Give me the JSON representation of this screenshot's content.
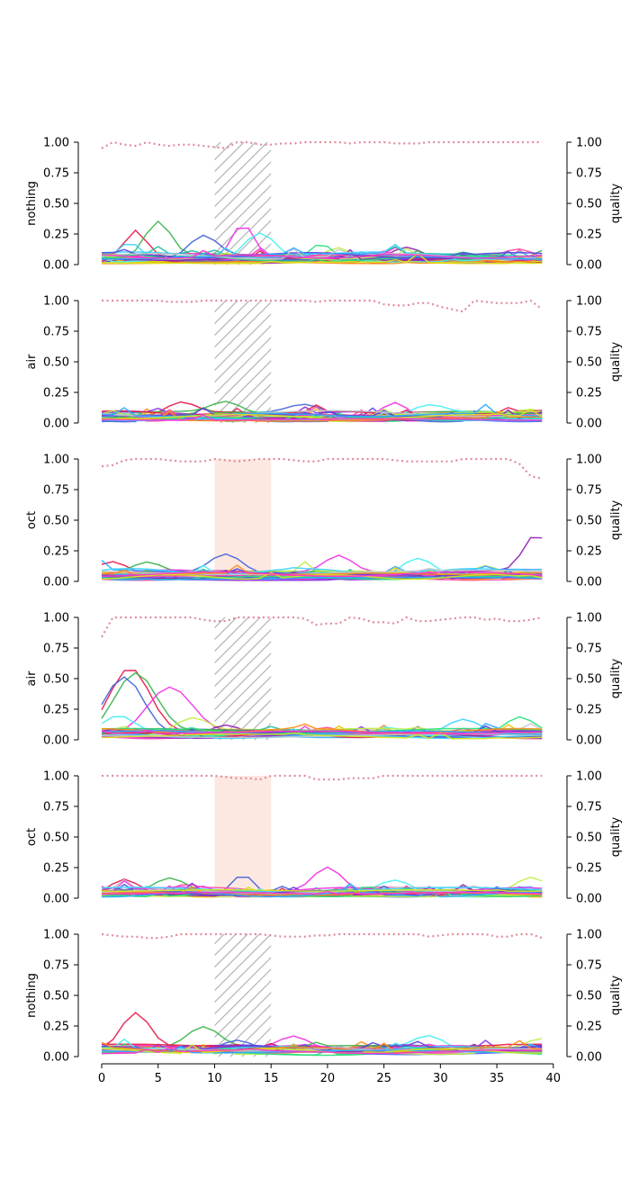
{
  "chart_data": {
    "type": "line",
    "x_range": [
      0,
      39
    ],
    "x_ticks": [
      0,
      5,
      10,
      15,
      20,
      25,
      30,
      35,
      40
    ],
    "y_ticks": [
      "0.00",
      "0.25",
      "0.50",
      "0.75",
      "1.00"
    ],
    "ylim": [
      0,
      1
    ],
    "right_axis_label": "quality",
    "highlight_range": [
      10,
      15
    ],
    "colors": {
      "quality_line": "#e08a9a",
      "hatch": "#b4b4b4",
      "highlight_fill": "#fde8e1",
      "series_palette": [
        "#e6194b",
        "#3cb44b",
        "#4363d8",
        "#f032e6",
        "#46f0f0",
        "#bfef45",
        "#911eb4",
        "#ff4fa0",
        "#3bd3ff",
        "#27e07a",
        "#5b3fe0",
        "#c8c8c8",
        "#ff8c1a",
        "#2fa8ff",
        "#d4e81b",
        "#ff33cc",
        "#5060ff",
        "#20c0a0",
        "#f2c200",
        "#8a2be2"
      ]
    },
    "panels": [
      {
        "ylabel": "nothing",
        "region_style": "hatch",
        "quality": [
          0.95,
          1.0,
          0.98,
          0.97,
          1.0,
          0.98,
          0.97,
          0.98,
          0.98,
          0.97,
          0.96,
          0.95,
          1.0,
          1.0,
          0.98,
          0.98,
          0.99,
          0.99,
          1.0,
          1.0,
          1.0,
          1.0,
          0.99,
          1.0,
          1.0,
          1.0,
          0.99,
          0.99,
          0.99,
          1.0,
          1.0,
          1.0,
          1.0,
          1.0,
          1.0,
          1.0,
          1.0,
          1.0,
          1.0,
          1.0
        ],
        "features": [
          {
            "x": 3,
            "h": 0.22,
            "w": 1.3
          },
          {
            "x": 5,
            "h": 0.29,
            "w": 1.6
          },
          {
            "x": 9,
            "h": 0.19,
            "w": 1.8
          },
          {
            "x": 12.5,
            "h": 0.28,
            "w": 1.4
          },
          {
            "x": 14,
            "h": 0.24,
            "w": 2.0
          },
          {
            "x": 21,
            "h": 0.12,
            "w": 1.8
          },
          {
            "x": 27,
            "h": 0.12,
            "w": 2.0
          },
          {
            "x": 37,
            "h": 0.09,
            "w": 2.0
          },
          {
            "x": 2.5,
            "h": 0.16,
            "w": 1.5
          }
        ]
      },
      {
        "ylabel": "air",
        "region_style": "hatch",
        "quality": [
          1.0,
          1.0,
          1.0,
          1.0,
          1.0,
          1.0,
          0.99,
          0.99,
          0.99,
          1.0,
          1.0,
          1.0,
          1.0,
          1.0,
          1.0,
          1.0,
          1.0,
          1.0,
          1.0,
          0.99,
          1.0,
          1.0,
          1.0,
          1.0,
          1.0,
          0.97,
          0.96,
          0.96,
          0.98,
          0.98,
          0.95,
          0.93,
          0.91,
          1.0,
          0.99,
          0.98,
          0.98,
          0.98,
          1.0,
          0.93
        ],
        "features": [
          {
            "x": 7,
            "h": 0.1,
            "w": 1.8
          },
          {
            "x": 11,
            "h": 0.09,
            "w": 1.8
          },
          {
            "x": 18,
            "h": 0.07,
            "w": 2.0
          },
          {
            "x": 26,
            "h": 0.13,
            "w": 1.6
          },
          {
            "x": 29,
            "h": 0.08,
            "w": 2.0
          },
          {
            "x": 38,
            "h": 0.07,
            "w": 2.0
          }
        ]
      },
      {
        "ylabel": "oct",
        "region_style": "fill",
        "quality": [
          0.94,
          0.95,
          0.99,
          1.0,
          1.0,
          1.0,
          0.99,
          0.98,
          0.98,
          0.98,
          1.0,
          0.99,
          0.98,
          0.99,
          1.0,
          1.0,
          1.0,
          0.99,
          0.98,
          0.98,
          1.0,
          1.0,
          1.0,
          1.0,
          1.0,
          1.0,
          0.99,
          0.98,
          0.98,
          0.98,
          0.98,
          0.98,
          1.0,
          1.0,
          1.0,
          1.0,
          1.0,
          0.96,
          0.86,
          0.84
        ],
        "features": [
          {
            "x": 1,
            "h": 0.1,
            "w": 1.8
          },
          {
            "x": 4,
            "h": 0.09,
            "w": 1.8
          },
          {
            "x": 11,
            "h": 0.16,
            "w": 2.0
          },
          {
            "x": 21,
            "h": 0.12,
            "w": 1.6
          },
          {
            "x": 28,
            "h": 0.18,
            "w": 2.2
          },
          {
            "x": 34,
            "h": 0.1,
            "w": 1.8
          },
          {
            "x": 38.5,
            "h": 0.3,
            "w": 1.6
          }
        ]
      },
      {
        "ylabel": "air",
        "region_style": "hatch",
        "quality": [
          0.84,
          1.0,
          1.0,
          1.0,
          1.0,
          1.0,
          1.0,
          1.0,
          1.0,
          0.98,
          0.97,
          0.97,
          1.0,
          1.0,
          1.0,
          1.0,
          1.0,
          1.0,
          0.99,
          0.94,
          0.95,
          0.95,
          1.0,
          0.99,
          0.96,
          0.96,
          0.95,
          1.0,
          0.97,
          0.97,
          0.98,
          0.99,
          1.0,
          1.0,
          0.98,
          0.99,
          0.97,
          0.97,
          0.98,
          1.0
        ],
        "features": [
          {
            "x": 2.5,
            "h": 0.54,
            "w": 2.5
          },
          {
            "x": 3,
            "h": 0.5,
            "w": 2.6
          },
          {
            "x": 2,
            "h": 0.46,
            "w": 2.4
          },
          {
            "x": 6,
            "h": 0.38,
            "w": 2.8
          },
          {
            "x": 1.5,
            "h": 0.15,
            "w": 2.0
          },
          {
            "x": 8,
            "h": 0.12,
            "w": 2.0
          },
          {
            "x": 11,
            "h": 0.1,
            "w": 2.0
          },
          {
            "x": 20,
            "h": 0.09,
            "w": 2.2
          },
          {
            "x": 32,
            "h": 0.12,
            "w": 2.0
          },
          {
            "x": 37,
            "h": 0.14,
            "w": 1.8
          }
        ]
      },
      {
        "ylabel": "oct",
        "region_style": "fill",
        "quality": [
          1.0,
          1.0,
          1.0,
          1.0,
          1.0,
          1.0,
          1.0,
          1.0,
          1.0,
          1.0,
          1.0,
          0.99,
          0.98,
          0.98,
          0.97,
          1.0,
          1.0,
          1.0,
          1.0,
          0.97,
          0.97,
          0.97,
          0.98,
          0.98,
          0.98,
          1.0,
          1.0,
          1.0,
          1.0,
          1.0,
          1.0,
          1.0,
          1.0,
          1.0,
          1.0,
          1.0,
          1.0,
          1.0,
          1.0,
          1.0
        ],
        "features": [
          {
            "x": 2,
            "h": 0.11,
            "w": 1.6
          },
          {
            "x": 6,
            "h": 0.11,
            "w": 1.8
          },
          {
            "x": 12.5,
            "h": 0.18,
            "w": 1.5
          },
          {
            "x": 20,
            "h": 0.2,
            "w": 1.8
          },
          {
            "x": 26,
            "h": 0.1,
            "w": 2.0
          },
          {
            "x": 38,
            "h": 0.12,
            "w": 1.8
          }
        ]
      },
      {
        "ylabel": "nothing",
        "region_style": "hatch",
        "quality": [
          1.0,
          0.99,
          0.98,
          0.98,
          0.97,
          0.97,
          0.98,
          1.0,
          1.0,
          1.0,
          1.0,
          1.0,
          1.0,
          1.0,
          1.0,
          0.99,
          0.98,
          0.98,
          0.98,
          0.99,
          0.99,
          1.0,
          1.0,
          1.0,
          1.0,
          1.0,
          1.0,
          1.0,
          1.0,
          0.98,
          0.99,
          1.0,
          1.0,
          1.0,
          1.0,
          0.98,
          0.98,
          1.0,
          1.0,
          0.97
        ],
        "features": [
          {
            "x": 3,
            "h": 0.31,
            "w": 1.8
          },
          {
            "x": 9,
            "h": 0.17,
            "w": 2.0
          },
          {
            "x": 12,
            "h": 0.1,
            "w": 2.0
          },
          {
            "x": 17,
            "h": 0.1,
            "w": 1.8
          },
          {
            "x": 29,
            "h": 0.11,
            "w": 2.0
          },
          {
            "x": 39,
            "h": 0.09,
            "w": 2.0
          }
        ]
      }
    ]
  }
}
